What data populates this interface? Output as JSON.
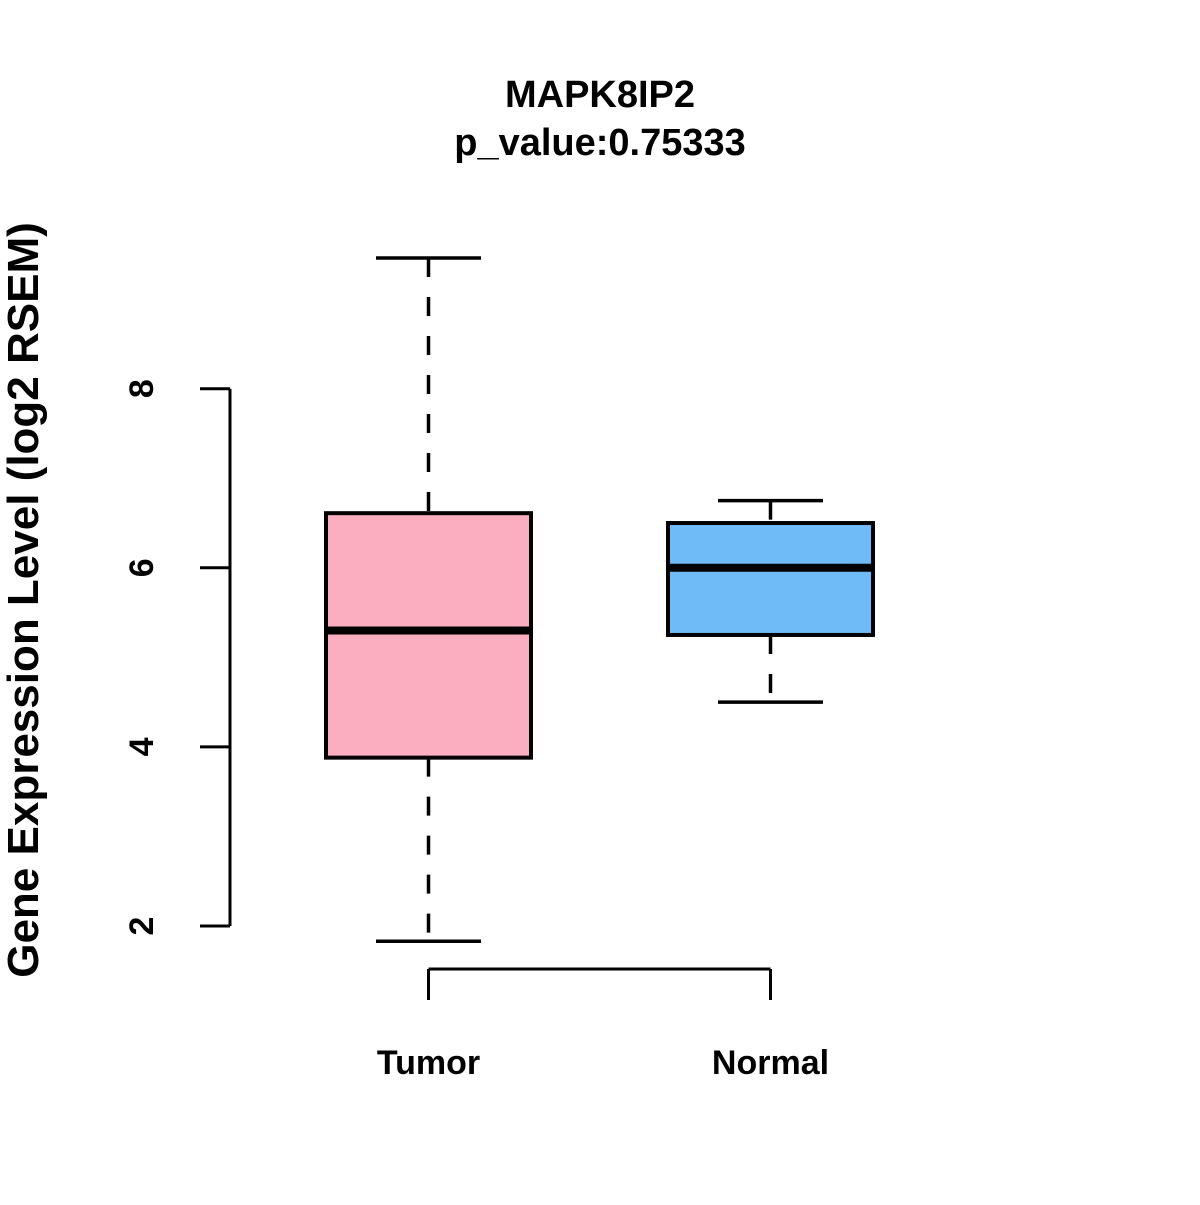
{
  "title": "MAPK8IP2",
  "subtitle": "p_value:0.75333",
  "chart_data": {
    "type": "boxplot",
    "title": "MAPK8IP2",
    "subtitle": "p_value:0.75333",
    "ylabel": "Gene Expression Level (log2 RSEM)",
    "xlabel": "",
    "categories": [
      "Tumor",
      "Normal"
    ],
    "yticks": [
      2,
      4,
      6,
      8
    ],
    "ylim": [
      1.3,
      9.8
    ],
    "grid": false,
    "legend_position": "none",
    "series": [
      {
        "name": "Tumor",
        "box_fill": "#FCAEC1",
        "whisker_low": 1.83,
        "q1": 3.88,
        "median": 5.3,
        "q3": 6.61,
        "whisker_high": 9.46
      },
      {
        "name": "Normal",
        "box_fill": "#6FBBF8",
        "whisker_low": 4.5,
        "q1": 5.25,
        "median": 6.0,
        "q3": 6.5,
        "whisker_high": 6.75
      }
    ],
    "colors": {
      "tumor_box": "#FCAEC1",
      "normal_box": "#6FBBF8",
      "line": "#000000",
      "background": "#ffffff"
    }
  }
}
